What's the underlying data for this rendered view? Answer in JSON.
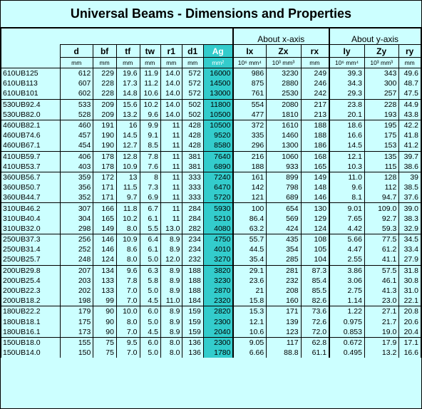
{
  "title": "Universal Beams - Dimensions and Properties",
  "axes": {
    "x_axis": "About x-axis",
    "y_axis": "About y-axis"
  },
  "headers": [
    "d",
    "bf",
    "tf",
    "tw",
    "r1",
    "d1",
    "Ag",
    "Ix",
    "Zx",
    "rx",
    "Iy",
    "Zy",
    "ry"
  ],
  "units": [
    "mm",
    "mm",
    "mm",
    "mm",
    "mm",
    "mm",
    "mm²",
    "10⁶ mm⁴",
    "10³ mm³",
    "mm",
    "10⁶ mm⁴",
    "10³ mm³",
    "mm"
  ],
  "groups": [
    [
      [
        "610UB125",
        "612",
        "229",
        "19.6",
        "11.9",
        "14.0",
        "572",
        "16000",
        "986",
        "3230",
        "249",
        "39.3",
        "343",
        "49.6"
      ],
      [
        "610UB113",
        "607",
        "228",
        "17.3",
        "11.2",
        "14.0",
        "572",
        "14500",
        "875",
        "2880",
        "246",
        "34.3",
        "300",
        "48.7"
      ],
      [
        "610UB101",
        "602",
        "228",
        "14.8",
        "10.6",
        "14.0",
        "572",
        "13000",
        "761",
        "2530",
        "242",
        "29.3",
        "257",
        "47.5"
      ]
    ],
    [
      [
        "530UB92.4",
        "533",
        "209",
        "15.6",
        "10.2",
        "14.0",
        "502",
        "11800",
        "554",
        "2080",
        "217",
        "23.8",
        "228",
        "44.9"
      ],
      [
        "530UB82.0",
        "528",
        "209",
        "13.2",
        "9.6",
        "14.0",
        "502",
        "10500",
        "477",
        "1810",
        "213",
        "20.1",
        "193",
        "43.8"
      ]
    ],
    [
      [
        "460UB82.1",
        "460",
        "191",
        "16",
        "9.9",
        "11",
        "428",
        "10500",
        "372",
        "1610",
        "188",
        "18.6",
        "195",
        "42.2"
      ],
      [
        "460UB74.6",
        "457",
        "190",
        "14.5",
        "9.1",
        "11",
        "428",
        "9520",
        "335",
        "1460",
        "188",
        "16.6",
        "175",
        "41.8"
      ],
      [
        "460UB67.1",
        "454",
        "190",
        "12.7",
        "8.5",
        "11",
        "428",
        "8580",
        "296",
        "1300",
        "186",
        "14.5",
        "153",
        "41.2"
      ]
    ],
    [
      [
        "410UB59.7",
        "406",
        "178",
        "12.8",
        "7.8",
        "11",
        "381",
        "7640",
        "216",
        "1060",
        "168",
        "12.1",
        "135",
        "39.7"
      ],
      [
        "410UB53.7",
        "403",
        "178",
        "10.9",
        "7.6",
        "11",
        "381",
        "6890",
        "188",
        "933",
        "165",
        "10.3",
        "115",
        "38.6"
      ]
    ],
    [
      [
        "360UB56.7",
        "359",
        "172",
        "13",
        "8",
        "11",
        "333",
        "7240",
        "161",
        "899",
        "149",
        "11.0",
        "128",
        "39"
      ],
      [
        "360UB50.7",
        "356",
        "171",
        "11.5",
        "7.3",
        "11",
        "333",
        "6470",
        "142",
        "798",
        "148",
        "9.6",
        "112",
        "38.5"
      ],
      [
        "360UB44.7",
        "352",
        "171",
        "9.7",
        "6.9",
        "11",
        "333",
        "5720",
        "121",
        "689",
        "146",
        "8.1",
        "94.7",
        "37.6"
      ]
    ],
    [
      [
        "310UB46.2",
        "307",
        "166",
        "11.8",
        "6.7",
        "11",
        "284",
        "5930",
        "100",
        "654",
        "130",
        "9.01",
        "109.0",
        "39.0"
      ],
      [
        "310UB40.4",
        "304",
        "165",
        "10.2",
        "6.1",
        "11",
        "284",
        "5210",
        "86.4",
        "569",
        "129",
        "7.65",
        "92.7",
        "38.3"
      ],
      [
        "310UB32.0",
        "298",
        "149",
        "8.0",
        "5.5",
        "13.0",
        "282",
        "4080",
        "63.2",
        "424",
        "124",
        "4.42",
        "59.3",
        "32.9"
      ]
    ],
    [
      [
        "250UB37.3",
        "256",
        "146",
        "10.9",
        "6.4",
        "8.9",
        "234",
        "4750",
        "55.7",
        "435",
        "108",
        "5.66",
        "77.5",
        "34.5"
      ],
      [
        "250UB31.4",
        "252",
        "146",
        "8.6",
        "6.1",
        "8.9",
        "234",
        "4010",
        "44.5",
        "354",
        "105",
        "4.47",
        "61.2",
        "33.4"
      ],
      [
        "250UB25.7",
        "248",
        "124",
        "8.0",
        "5.0",
        "12.0",
        "232",
        "3270",
        "35.4",
        "285",
        "104",
        "2.55",
        "41.1",
        "27.9"
      ]
    ],
    [
      [
        "200UB29.8",
        "207",
        "134",
        "9.6",
        "6.3",
        "8.9",
        "188",
        "3820",
        "29.1",
        "281",
        "87.3",
        "3.86",
        "57.5",
        "31.8"
      ],
      [
        "200UB25.4",
        "203",
        "133",
        "7.8",
        "5.8",
        "8.9",
        "188",
        "3230",
        "23.6",
        "232",
        "85.4",
        "3.06",
        "46.1",
        "30.8"
      ],
      [
        "200UB22.3",
        "202",
        "133",
        "7.0",
        "5.0",
        "8.9",
        "188",
        "2870",
        "21",
        "208",
        "85.5",
        "2.75",
        "41.3",
        "31.0"
      ],
      [
        "200UB18.2",
        "198",
        "99",
        "7.0",
        "4.5",
        "11.0",
        "184",
        "2320",
        "15.8",
        "160",
        "82.6",
        "1.14",
        "23.0",
        "22.1"
      ]
    ],
    [
      [
        "180UB22.2",
        "179",
        "90",
        "10.0",
        "6.0",
        "8.9",
        "159",
        "2820",
        "15.3",
        "171",
        "73.6",
        "1.22",
        "27.1",
        "20.8"
      ],
      [
        "180UB18.1",
        "175",
        "90",
        "8.0",
        "5.0",
        "8.9",
        "159",
        "2300",
        "12.1",
        "139",
        "72.6",
        "0.975",
        "21.7",
        "20.6"
      ],
      [
        "180UB16.1",
        "173",
        "90",
        "7.0",
        "4.5",
        "8.9",
        "159",
        "2040",
        "10.6",
        "123",
        "72.0",
        "0.853",
        "19.0",
        "20.4"
      ]
    ],
    [
      [
        "150UB18.0",
        "155",
        "75",
        "9.5",
        "6.0",
        "8.0",
        "136",
        "2300",
        "9.05",
        "117",
        "62.8",
        "0.672",
        "17.9",
        "17.1"
      ],
      [
        "150UB14.0",
        "150",
        "75",
        "7.0",
        "5.0",
        "8.0",
        "136",
        "1780",
        "6.66",
        "88.8",
        "61.1",
        "0.495",
        "13.2",
        "16.6"
      ]
    ]
  ]
}
